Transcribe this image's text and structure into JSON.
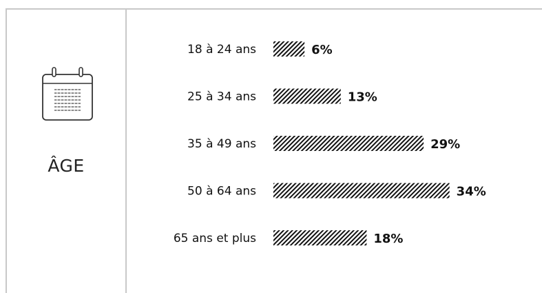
{
  "panel": {
    "label": "ÂGE",
    "icon": "calendar-icon"
  },
  "chart_data": {
    "type": "bar",
    "orientation": "horizontal",
    "categories": [
      "18 à 24 ans",
      "25 à 34 ans",
      "35 à 49 ans",
      "50 à 64 ans",
      "65 ans et plus"
    ],
    "values": [
      6,
      13,
      29,
      34,
      18
    ],
    "value_labels": [
      "6%",
      "13%",
      "29%",
      "34%",
      "18%"
    ],
    "unit": "%",
    "title": "",
    "xlabel": "",
    "ylabel": "",
    "bar_fill": "diagonal-hatch",
    "bar_color": "#111111",
    "grid": false,
    "legend": "none"
  }
}
